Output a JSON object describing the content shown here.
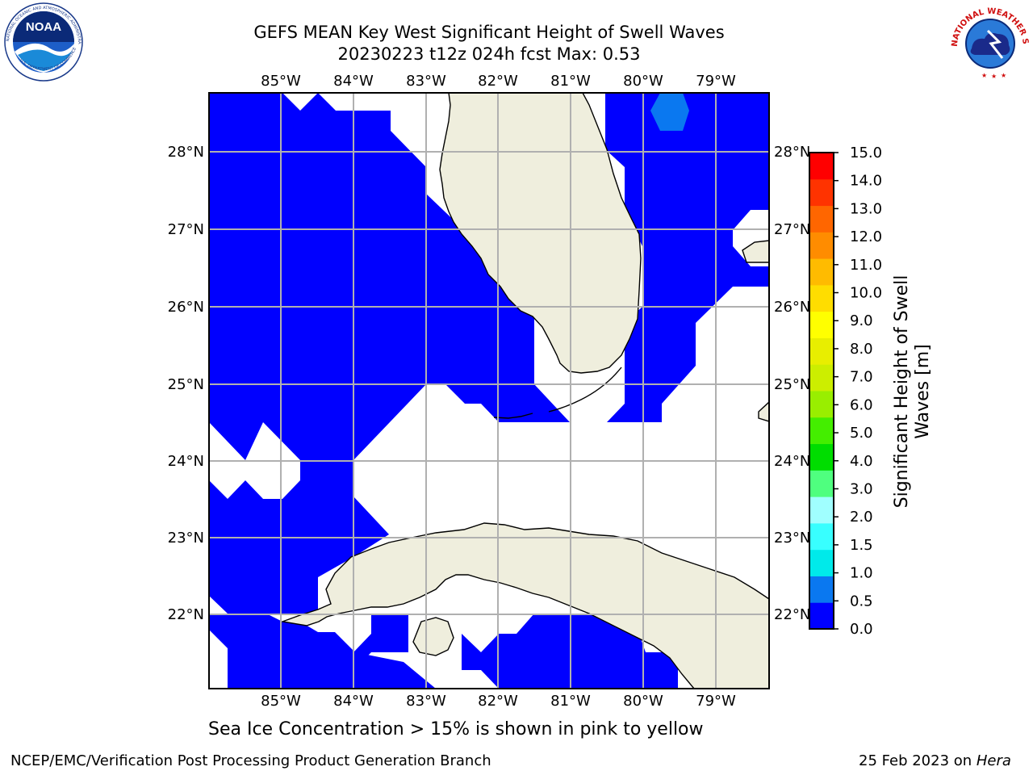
{
  "header": {
    "title_line1": "GEFS MEAN Key West Significant Height of Swell Waves",
    "title_line2": "20230223 t12z 024h fcst   Max: 0.53"
  },
  "logos": {
    "left": {
      "text": "NOAA",
      "ring_text": "NATIONAL OCEANIC AND ATMOSPHERIC ADMINISTRATION",
      "ring_text_bottom": "U.S. DEPARTMENT OF COMMERCE"
    },
    "right": {
      "ring_text": "NATIONAL WEATHER SERVICE"
    }
  },
  "map": {
    "lon_labels": [
      "85°W",
      "84°W",
      "83°W",
      "82°W",
      "81°W",
      "80°W",
      "79°W"
    ],
    "lat_labels": [
      "28°N",
      "27°N",
      "26°N",
      "25°N",
      "24°N",
      "23°N",
      "22°N"
    ],
    "colors": {
      "ocean_low": "#0000ff",
      "ocean_mid": "#0a78f0",
      "land": "#efeedd",
      "grid": "#b0b0b0"
    }
  },
  "colorbar": {
    "ticks": [
      "15.0",
      "14.0",
      "13.0",
      "12.0",
      "11.0",
      "10.0",
      "9.0",
      "8.0",
      "7.0",
      "6.0",
      "5.0",
      "4.0",
      "3.0",
      "2.0",
      "1.5",
      "1.0",
      "0.5",
      "0.0"
    ],
    "label_line1": "Significant Height of Swell",
    "label_line2": "Waves [m]",
    "colors": [
      "#0000ff",
      "#0a78f0",
      "#00eaea",
      "#38ffff",
      "#a0ffff",
      "#4fff7f",
      "#00dd00",
      "#44ee00",
      "#99ee00",
      "#ccee00",
      "#e8ee00",
      "#ffff00",
      "#ffdd00",
      "#ffbb00",
      "#ff8c00",
      "#ff6600",
      "#ff3300",
      "#ff0000"
    ]
  },
  "caption": "Sea Ice Concentration > 15% is shown in pink to yellow",
  "footer": {
    "left": "NCEP/EMC/Verification Post Processing Product Generation Branch",
    "right_date": "25 Feb 2023 on ",
    "right_host": "Hera"
  }
}
